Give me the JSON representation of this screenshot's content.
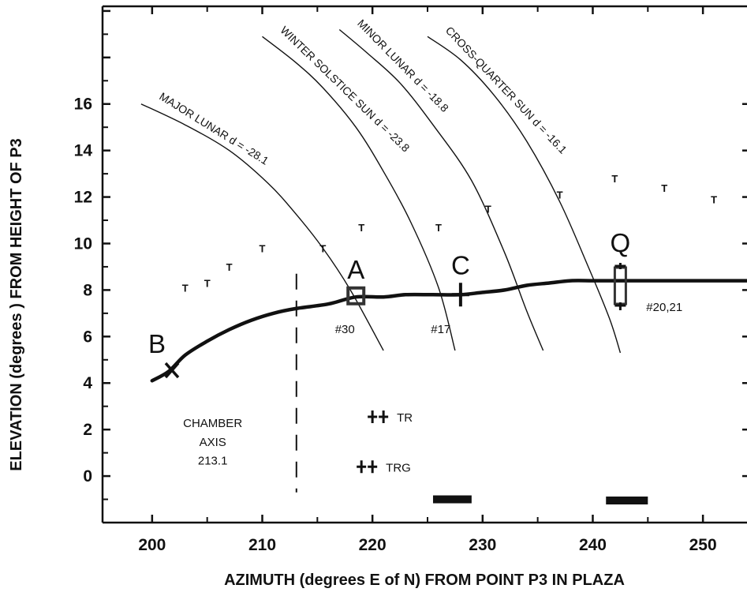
{
  "chart_data": {
    "type": "line",
    "xlabel": "AZIMUTH (degrees E of N) FROM POINT P3 IN PLAZA",
    "ylabel": "ELEVATION (degrees ) FROM HEIGHT OF P3",
    "xlim": [
      195.5,
      254
    ],
    "ylim": [
      -2,
      20.2
    ],
    "x_ticks": [
      200,
      210,
      220,
      230,
      240,
      250
    ],
    "y_ticks": [
      0,
      2,
      4,
      6,
      8,
      10,
      12,
      14,
      16
    ],
    "grid": false,
    "horizon": {
      "name": "horizon profile",
      "x": [
        200,
        201.5,
        203,
        205,
        207,
        209,
        211,
        213,
        216,
        218.5,
        221,
        223,
        225.5,
        228,
        230,
        232,
        234,
        236,
        238,
        240,
        242.5,
        245,
        250,
        254
      ],
      "y": [
        4.1,
        4.5,
        5.2,
        5.8,
        6.3,
        6.7,
        7.0,
        7.2,
        7.4,
        7.7,
        7.7,
        7.8,
        7.8,
        7.8,
        7.9,
        8.0,
        8.2,
        8.3,
        8.4,
        8.4,
        8.4,
        8.4,
        8.4,
        8.4
      ]
    },
    "series": [
      {
        "label": "MAJOR LUNAR  d = -28.1",
        "x": [
          199,
          203,
          207,
          210.5,
          213,
          215.5,
          218,
          221
        ],
        "y": [
          16,
          15.1,
          14,
          12.6,
          11.3,
          9.8,
          8.0,
          5.4
        ]
      },
      {
        "label": "WINTER SOLSTICE SUN  d = -23.8",
        "x": [
          210,
          213,
          215.5,
          218.5,
          221,
          223.5,
          226,
          227.5
        ],
        "y": [
          18.9,
          17.8,
          16.7,
          15,
          13.1,
          10.9,
          8.1,
          5.4
        ]
      },
      {
        "label": "MINOR LUNAR  d = -18.8",
        "x": [
          217,
          219.5,
          222.5,
          225.5,
          229,
          232,
          234,
          235.5
        ],
        "y": [
          19.2,
          18.2,
          16.9,
          15.1,
          12.7,
          9.6,
          7.1,
          5.4
        ]
      },
      {
        "label": "CROSS-QUARTER SUN  d = -16.1",
        "x": [
          225,
          228,
          231,
          234,
          237,
          239.5,
          241.5,
          242.5
        ],
        "y": [
          18.9,
          17.9,
          16.4,
          14.4,
          11.8,
          9.1,
          6.8,
          5.3
        ]
      }
    ],
    "t_markers": {
      "symbol": "T",
      "points": [
        [
          203,
          8.1
        ],
        [
          205,
          8.3
        ],
        [
          207,
          9.0
        ],
        [
          210,
          9.8
        ],
        [
          215.5,
          9.8
        ],
        [
          219,
          10.7
        ],
        [
          226,
          10.7
        ],
        [
          230.5,
          11.5
        ],
        [
          237,
          12.1
        ],
        [
          242,
          12.8
        ],
        [
          246.5,
          12.4
        ],
        [
          251,
          11.9
        ]
      ]
    },
    "points": [
      {
        "label": "A",
        "x": 218.5,
        "y": 7.75,
        "marker": "square"
      },
      {
        "label": "B",
        "x": 201.8,
        "y": 4.55,
        "marker": "x"
      },
      {
        "label": "C",
        "x": 228,
        "y": 7.8,
        "marker": "plus"
      },
      {
        "label": "Q",
        "x": 242.5,
        "y": 8.15,
        "marker": "rect"
      }
    ],
    "annotations": [
      {
        "text": "#30",
        "x": 217.5,
        "y": 6.15
      },
      {
        "text": "#17",
        "x": 226.2,
        "y": 6.15
      },
      {
        "text": "#20,21",
        "x": 246.5,
        "y": 7.1
      }
    ],
    "chamber_axis": {
      "x": 213.1,
      "y_range": [
        -0.7,
        8.7
      ],
      "lines": [
        "CHAMBER",
        "AXIS",
        "213.1"
      ],
      "label_x": 205.5,
      "label_y": [
        2.1,
        1.3,
        0.5
      ]
    },
    "markers": [
      {
        "symbol": "++",
        "label": "TR",
        "x": 220.5,
        "y": 2.55
      },
      {
        "symbol": "++",
        "label": "TRG",
        "x": 219.5,
        "y": 0.4
      }
    ],
    "bars": [
      {
        "x0": 225.5,
        "x1": 229,
        "y": -1.0
      },
      {
        "x0": 241.2,
        "x1": 245,
        "y": -1.05
      }
    ]
  }
}
